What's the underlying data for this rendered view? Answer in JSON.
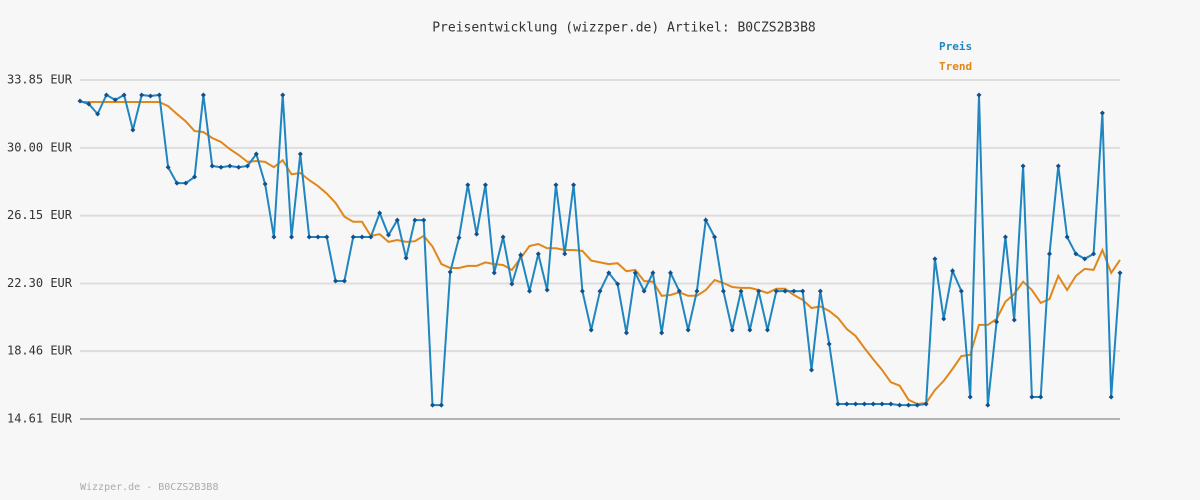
{
  "chart_data": {
    "type": "line",
    "title": "Preisentwicklung (wizzper.de) Artikel: B0CZS2B3B8",
    "footer": "Wizzper.de - B0CZS2B3B8",
    "ylim": [
      14.61,
      33.85
    ],
    "yticks": [
      {
        "value": 14.61,
        "label": "14.61 EUR"
      },
      {
        "value": 18.46,
        "label": "18.46 EUR"
      },
      {
        "value": 22.3,
        "label": "22.30 EUR"
      },
      {
        "value": 26.15,
        "label": "26.15 EUR"
      },
      {
        "value": 30.0,
        "label": "30.00 EUR"
      },
      {
        "value": 33.85,
        "label": "33.85 EUR"
      }
    ],
    "grid": true,
    "legend": "top-right",
    "series": [
      {
        "name": "Preis",
        "color": "#1f86c0",
        "markers": true,
        "values": [
          32.66,
          32.49,
          31.92,
          33.0,
          32.72,
          33.0,
          31.01,
          33.0,
          32.94,
          33.0,
          28.9,
          28.0,
          28.0,
          28.35,
          33.0,
          28.97,
          28.9,
          28.97,
          28.9,
          28.97,
          29.65,
          27.95,
          24.94,
          33.0,
          24.94,
          29.65,
          24.94,
          24.94,
          24.94,
          22.44,
          22.44,
          24.94,
          24.94,
          24.94,
          26.3,
          25.05,
          25.9,
          23.75,
          25.9,
          25.9,
          15.4,
          15.4,
          22.95,
          24.9,
          27.9,
          25.1,
          27.9,
          22.9,
          24.94,
          22.27,
          23.92,
          21.87,
          23.98,
          21.93,
          27.9,
          23.98,
          27.9,
          21.87,
          19.66,
          21.87,
          22.9,
          22.27,
          19.5,
          22.9,
          21.87,
          22.9,
          19.5,
          22.9,
          21.87,
          19.66,
          21.87,
          25.9,
          24.94,
          21.87,
          19.66,
          21.87,
          19.66,
          21.87,
          19.66,
          21.87,
          21.87,
          21.87,
          21.87,
          17.39,
          21.87,
          18.87,
          15.46,
          15.46,
          15.46,
          15.46,
          15.46,
          15.46,
          15.46,
          15.4,
          15.4,
          15.4,
          15.46,
          23.7,
          20.29,
          23.02,
          21.87,
          15.86,
          33.0,
          15.4,
          20.12,
          24.94,
          20.23,
          28.97,
          15.86,
          15.86,
          23.98,
          28.97,
          24.94,
          23.98,
          23.7,
          23.98,
          31.98,
          15.86,
          22.9
        ]
      },
      {
        "name": "Trend",
        "color": "#e0871a",
        "markers": false,
        "values": [
          32.6,
          32.6,
          32.6,
          32.6,
          32.6,
          32.6,
          32.6,
          32.6,
          32.6,
          32.6,
          32.37,
          31.92,
          31.5,
          30.95,
          30.9,
          30.56,
          30.33,
          29.93,
          29.6,
          29.2,
          29.25,
          29.2,
          28.9,
          29.3,
          28.5,
          28.57,
          28.17,
          27.83,
          27.4,
          26.87,
          26.1,
          25.8,
          25.8,
          25.0,
          25.1,
          24.66,
          24.77,
          24.66,
          24.7,
          25.0,
          24.4,
          23.4,
          23.18,
          23.18,
          23.3,
          23.3,
          23.5,
          23.4,
          23.35,
          23.07,
          23.75,
          24.43,
          24.54,
          24.3,
          24.3,
          24.2,
          24.2,
          24.15,
          23.6,
          23.5,
          23.4,
          23.45,
          23.0,
          23.07,
          22.44,
          22.4,
          21.6,
          21.65,
          21.8,
          21.6,
          21.6,
          21.93,
          22.5,
          22.33,
          22.1,
          22.05,
          22.05,
          21.93,
          21.76,
          22.0,
          22.0,
          21.65,
          21.37,
          20.91,
          21.0,
          20.74,
          20.34,
          19.72,
          19.32,
          18.64,
          18.0,
          17.4,
          16.7,
          16.5,
          15.7,
          15.46,
          15.52,
          16.25,
          16.77,
          17.45,
          18.18,
          18.25,
          19.95,
          19.95,
          20.29,
          21.26,
          21.7,
          22.4,
          21.93,
          21.2,
          21.42,
          22.73,
          21.93,
          22.73,
          23.13,
          23.07,
          24.2,
          22.9,
          23.64
        ]
      }
    ]
  }
}
